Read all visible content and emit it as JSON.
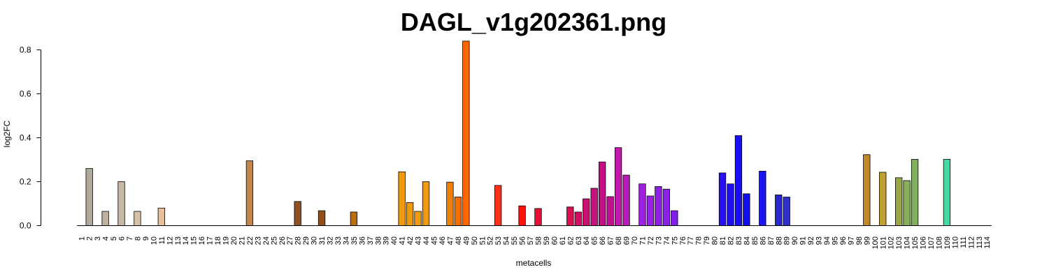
{
  "chart_data": {
    "type": "bar",
    "title": "DAGL_v1g202361.png",
    "xlabel": "metacells",
    "ylabel": "log2FC",
    "ylim": [
      0,
      0.84
    ],
    "yticks": [
      "0.0",
      "0.2",
      "0.4",
      "0.6",
      "0.8"
    ],
    "grid": false,
    "categories": [
      "1",
      "2",
      "3",
      "4",
      "5",
      "6",
      "7",
      "8",
      "9",
      "10",
      "11",
      "12",
      "13",
      "14",
      "15",
      "16",
      "17",
      "18",
      "19",
      "20",
      "21",
      "22",
      "23",
      "24",
      "25",
      "26",
      "27",
      "28",
      "29",
      "30",
      "31",
      "32",
      "33",
      "34",
      "35",
      "36",
      "37",
      "38",
      "39",
      "40",
      "41",
      "42",
      "43",
      "44",
      "45",
      "46",
      "47",
      "48",
      "49",
      "50",
      "51",
      "52",
      "53",
      "54",
      "55",
      "56",
      "57",
      "58",
      "59",
      "60",
      "61",
      "62",
      "63",
      "64",
      "65",
      "66",
      "67",
      "68",
      "69",
      "70",
      "71",
      "72",
      "73",
      "74",
      "75",
      "76",
      "77",
      "78",
      "79",
      "80",
      "81",
      "82",
      "83",
      "84",
      "85",
      "86",
      "87",
      "88",
      "89",
      "90",
      "91",
      "92",
      "93",
      "94",
      "95",
      "96",
      "97",
      "98",
      "99",
      "100",
      "101",
      "102",
      "103",
      "104",
      "105",
      "106",
      "107",
      "108",
      "109",
      "110",
      "111",
      "112",
      "113",
      "114"
    ],
    "values": [
      0,
      0.26,
      0,
      0.065,
      0,
      0.2,
      0,
      0.065,
      0,
      0,
      0.08,
      0,
      0,
      0,
      0,
      0,
      0,
      0,
      0,
      0,
      0,
      0.295,
      0,
      0,
      0,
      0,
      0,
      0.11,
      0,
      0,
      0.068,
      0,
      0,
      0,
      0.062,
      0,
      0,
      0,
      0,
      0,
      0.245,
      0.105,
      0.065,
      0.2,
      0,
      0,
      0.198,
      0.13,
      0.84,
      0,
      0,
      0,
      0.183,
      0,
      0,
      0.09,
      0,
      0.078,
      0,
      0,
      0,
      0.085,
      0.062,
      0.122,
      0.17,
      0.29,
      0.132,
      0.355,
      0.23,
      0,
      0.19,
      0.135,
      0.178,
      0.166,
      0.068,
      0,
      0,
      0,
      0,
      0,
      0.24,
      0.19,
      0.41,
      0.145,
      0,
      0.248,
      0,
      0.14,
      0.13,
      0,
      0,
      0,
      0,
      0,
      0,
      0,
      0,
      0,
      0.323,
      0,
      0.243,
      0,
      0.218,
      0.205,
      0.302,
      0,
      0,
      0,
      0.302,
      0,
      0,
      0,
      0,
      0
    ],
    "colors": [
      "#b0a898",
      "#b0a898",
      "#b0a898",
      "#bfb0a0",
      "#c8b8a8",
      "#c8b8a8",
      "#d8c0a8",
      "#d8c0a8",
      "#e0c0a0",
      "#e8c098",
      "#e8c098",
      "#e0b890",
      "#d8b088",
      "#d0a880",
      "#c8a078",
      "#c89870",
      "#c89068",
      "#c89060",
      "#c88858",
      "#c88850",
      "#c88850",
      "#c08850",
      "#b87840",
      "#b07038",
      "#a86830",
      "#a06028",
      "#985820",
      "#905020",
      "#905020",
      "#905020",
      "#905018",
      "#985818",
      "#a06018",
      "#a86818",
      "#b86e10",
      "#c07810",
      "#c88010",
      "#d08808",
      "#d89008",
      "#e09808",
      "#f09a10",
      "#f09a10",
      "#f09a10",
      "#f09a10",
      "#f08808",
      "#f08008",
      "#f08008",
      "#f07000",
      "#ff6600",
      "#ff5000",
      "#ff4010",
      "#ff3818",
      "#ff3018",
      "#ff2818",
      "#ff2010",
      "#ff1010",
      "#f01020",
      "#e81030",
      "#e01040",
      "#e01048",
      "#e01048",
      "#dc1050",
      "#d01060",
      "#cc1070",
      "#c81080",
      "#c41088",
      "#c01090",
      "#c01aa8",
      "#b81ab8",
      "#a820c8",
      "#a020e0",
      "#9820e8",
      "#9020e8",
      "#8c20e8",
      "#8020e8",
      "#7020e8",
      "#6020e8",
      "#5020e8",
      "#4020f0",
      "#3020f0",
      "#2810f0",
      "#2010f0",
      "#1810f0",
      "#1010f0",
      "#1010e8",
      "#1818f0",
      "#2020e0",
      "#2828d0",
      "#3030c8",
      "#505090",
      "#707060",
      "#807040",
      "#907030",
      "#a07820",
      "#b08020",
      "#b88820",
      "#c08a20",
      "#c08a20",
      "#c08828",
      "#c09828",
      "#c0a030",
      "#a8a040",
      "#98a848",
      "#88b058",
      "#80b060",
      "#70c070",
      "#60c880",
      "#50d090",
      "#48d8a0",
      "#40d8a8",
      "#40d8a8",
      "#40d8a8",
      "#40d8a8",
      "#40d8a8"
    ]
  }
}
